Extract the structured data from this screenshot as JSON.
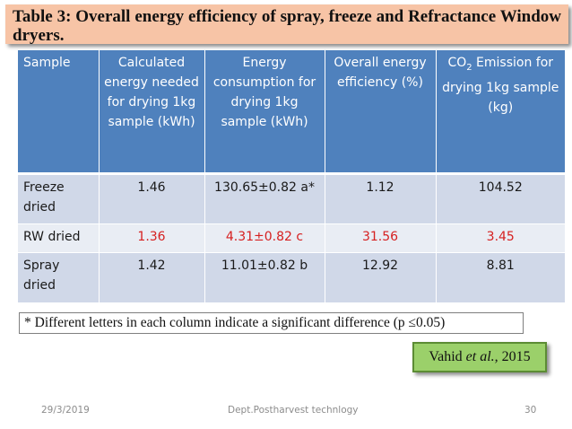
{
  "title": "Table 3: Overall energy efficiency of spray, freeze and Refractance Window dryers.",
  "table": {
    "headers": {
      "sample": "Sample",
      "calculated": "Calculated energy needed for drying 1kg sample (kWh)",
      "consumption": "Energy consumption for drying 1kg sample (kWh)",
      "efficiency": "Overall energy efficiency (%)",
      "co2_prefix": "CO",
      "co2_sub": "2",
      "co2_suffix": " Emission for drying 1kg sample (kg)"
    },
    "rows": [
      {
        "sample": "Freeze dried",
        "calculated": "1.46",
        "consumption": "130.65±0.82 a*",
        "efficiency": "1.12",
        "co2": "104.52"
      },
      {
        "sample": "RW dried",
        "calculated": "1.36",
        "consumption": "4.31±0.82 c",
        "efficiency": "31.56",
        "co2": "3.45"
      },
      {
        "sample": "Spray dried",
        "calculated": "1.42",
        "consumption": "11.01±0.82 b",
        "efficiency": "12.92",
        "co2": "8.81"
      }
    ]
  },
  "note": "* Different letters in each column indicate a significant difference (p ≤0.05)",
  "citation": {
    "author": "Vahid ",
    "etal": "et al.,",
    "year": " 2015"
  },
  "footer": {
    "date": "29/3/2019",
    "center": "Dept.Postharvest technlogy",
    "page": "30"
  },
  "colors": {
    "title_bg": "#f7c4a6",
    "header_bg": "#4f81bd",
    "row_dark": "#d0d8e8",
    "row_light": "#e9edf4",
    "highlight_text": "#d62020",
    "citation_bg": "#9bd06a"
  }
}
